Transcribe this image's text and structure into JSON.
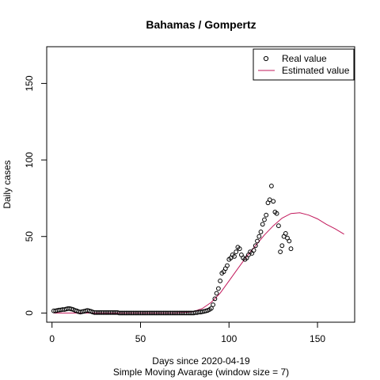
{
  "chart_data": {
    "type": "scatter",
    "title": "Bahamas / Gompertz",
    "xlabel": "Days since 2020-04-19",
    "subtitle": "Simple Moving Avarage (window size = 7)",
    "ylabel": "Daily cases",
    "xlim": [
      -3,
      171
    ],
    "ylim": [
      -6,
      174
    ],
    "xticks": [
      0,
      50,
      100,
      150
    ],
    "yticks": [
      0,
      50,
      100,
      150
    ],
    "legend": {
      "position": "top-right",
      "entries": [
        {
          "label": "Real value",
          "symbol": "circle",
          "color": "#000000"
        },
        {
          "label": "Estimated value",
          "symbol": "line",
          "color": "#c2185b"
        }
      ]
    },
    "series": [
      {
        "name": "Real value",
        "type": "scatter",
        "color": "#000000",
        "x": [
          1,
          2,
          3,
          4,
          5,
          6,
          7,
          8,
          9,
          10,
          11,
          12,
          13,
          14,
          15,
          16,
          17,
          18,
          19,
          20,
          21,
          22,
          23,
          24,
          25,
          26,
          27,
          28,
          29,
          30,
          31,
          32,
          33,
          34,
          35,
          36,
          37,
          38,
          39,
          40,
          41,
          42,
          43,
          44,
          45,
          46,
          47,
          48,
          49,
          50,
          51,
          52,
          53,
          54,
          55,
          56,
          57,
          58,
          59,
          60,
          61,
          62,
          63,
          64,
          65,
          66,
          67,
          68,
          69,
          70,
          71,
          72,
          73,
          74,
          75,
          76,
          77,
          78,
          79,
          80,
          81,
          82,
          83,
          84,
          85,
          86,
          87,
          88,
          89,
          90,
          91,
          92,
          93,
          94,
          95,
          96,
          97,
          98,
          99,
          100,
          101,
          102,
          103,
          104,
          105,
          106,
          107,
          108,
          109,
          110,
          111,
          112,
          113,
          114,
          115,
          116,
          117,
          118,
          119,
          120,
          121,
          122,
          123,
          124,
          125,
          126,
          127,
          128,
          129,
          130,
          131,
          132,
          133,
          134,
          135
        ],
        "y": [
          1.4,
          1.4,
          1.7,
          1.9,
          2.0,
          2.3,
          2.3,
          2.6,
          2.9,
          2.9,
          2.6,
          2.3,
          1.7,
          1.4,
          0.9,
          0.6,
          0.9,
          1.1,
          1.4,
          1.7,
          1.4,
          1.1,
          0.6,
          0.3,
          0.3,
          0.3,
          0.3,
          0.3,
          0.3,
          0.3,
          0.3,
          0.3,
          0.3,
          0.3,
          0.3,
          0.3,
          0.3,
          0,
          0,
          0,
          0,
          0,
          0,
          0,
          0,
          0,
          0,
          0,
          0,
          0,
          0,
          0,
          0,
          0,
          0,
          0,
          0,
          0,
          0,
          0,
          0,
          0,
          0,
          0,
          0,
          0,
          0,
          0,
          0,
          0,
          0,
          0,
          0,
          0,
          0,
          0,
          0,
          0,
          0,
          0,
          0.3,
          0.3,
          0.6,
          0.6,
          0.9,
          1.1,
          1.4,
          1.7,
          2.3,
          3.1,
          5.4,
          9.3,
          12.9,
          16.0,
          21.0,
          26.0,
          27.0,
          29.0,
          31.0,
          35.0,
          36.0,
          38.0,
          37.0,
          40.0,
          43.0,
          42.0,
          38.0,
          36.0,
          35.0,
          36.0,
          38.0,
          40.0,
          39.0,
          41.0,
          44.0,
          47.0,
          50.0,
          53.0,
          58.0,
          61.0,
          64.0,
          72.0,
          74.0,
          83.0,
          73.0,
          66.0,
          65.0,
          57.0,
          40.0,
          44.0,
          50.0,
          52.0,
          49.0,
          47.0,
          42.0
        ]
      },
      {
        "name": "Estimated value",
        "type": "line",
        "color": "#c2185b",
        "x": [
          1,
          10,
          20,
          30,
          40,
          50,
          60,
          70,
          75,
          80,
          85,
          90,
          95,
          100,
          105,
          110,
          115,
          120,
          125,
          130,
          135,
          140,
          145,
          150,
          155,
          160,
          165
        ],
        "y": [
          0,
          0,
          0,
          0,
          0,
          0,
          0,
          0.1,
          0.3,
          1.0,
          3.0,
          7.0,
          13.0,
          21.0,
          29.0,
          37.0,
          44.0,
          51.0,
          57.0,
          62.0,
          65.0,
          65.5,
          64.0,
          61.5,
          58.0,
          55.0,
          51.5
        ]
      }
    ]
  }
}
